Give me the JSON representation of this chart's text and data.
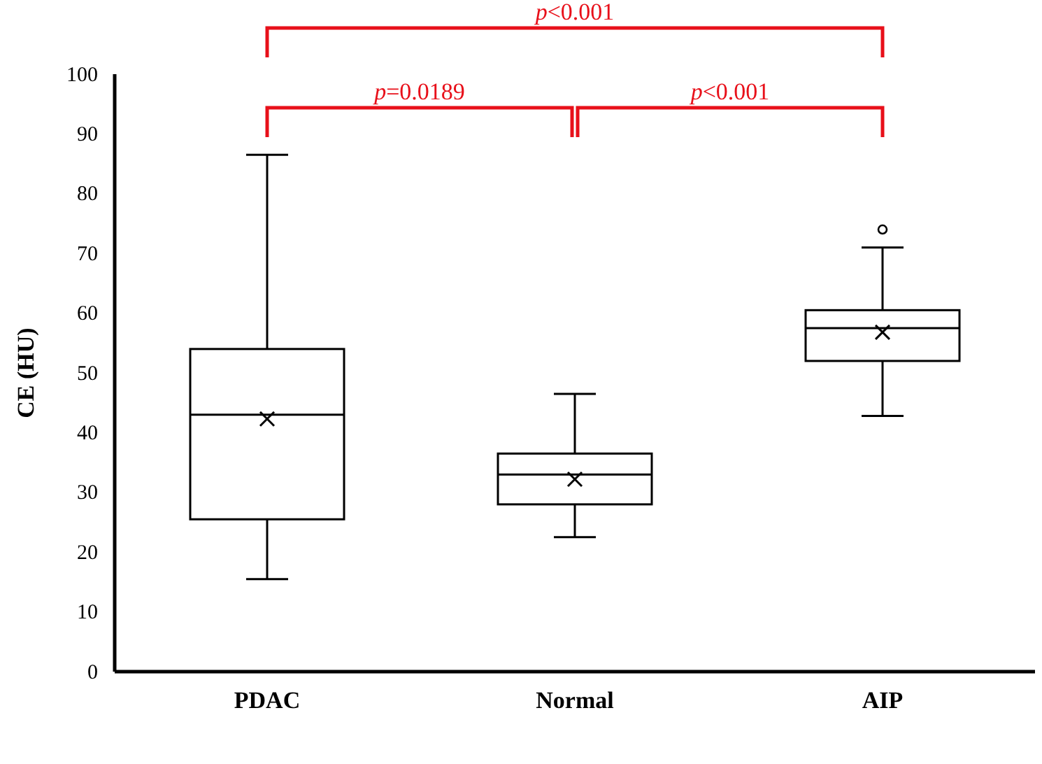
{
  "chart_data": {
    "type": "box",
    "ylabel": "CE (HU)",
    "categories": [
      "PDAC",
      "Normal",
      "AIP"
    ],
    "boxes": [
      {
        "low": 15.5,
        "q1": 25.5,
        "median": 43,
        "q3": 54,
        "high": 86.5,
        "mean": 42.3
      },
      {
        "low": 22.5,
        "q1": 28,
        "median": 33,
        "q3": 36.5,
        "high": 46.5,
        "mean": 32.2
      },
      {
        "low": 42.8,
        "q1": 52,
        "median": 57.5,
        "q3": 60.5,
        "high": 71,
        "mean": 56.8,
        "outliers": [
          74
        ]
      }
    ],
    "color": "#000000",
    "ylim": [
      0,
      100
    ],
    "yticks": [
      0,
      10,
      20,
      30,
      40,
      50,
      60,
      70,
      80,
      90,
      100
    ],
    "grid": false,
    "annotations": [
      "p<0.001",
      "p=0.0189",
      "p<0.001"
    ]
  }
}
